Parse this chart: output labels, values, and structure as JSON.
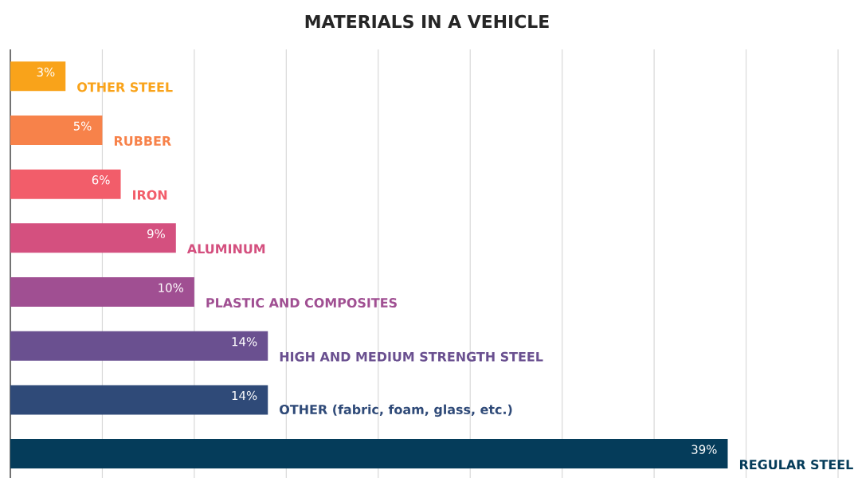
{
  "chart_data": {
    "type": "bar",
    "orientation": "horizontal",
    "title": "MATERIALS IN A VEHICLE",
    "categories": [
      "OTHER STEEL",
      "RUBBER",
      "IRON",
      "ALUMINUM",
      "PLASTIC AND COMPOSITES",
      "HIGH AND MEDIUM STRENGTH STEEL",
      "OTHER (fabric, foam, glass, etc.)",
      "REGULAR STEEL"
    ],
    "values": [
      3,
      5,
      6,
      9,
      10,
      14,
      14,
      39
    ],
    "value_labels": [
      "3%",
      "5%",
      "6%",
      "9%",
      "10%",
      "14%",
      "14%",
      "39%"
    ],
    "colors": [
      "#f9a31a",
      "#f7824a",
      "#f25d6a",
      "#d4507f",
      "#a04f92",
      "#6a5090",
      "#2f4a78",
      "#053c5a"
    ],
    "xlim": [
      0,
      45
    ],
    "xticks": [
      {
        "value": 0,
        "label": null
      },
      {
        "value": 5,
        "label": null
      },
      {
        "value": 10,
        "label": null
      },
      {
        "value": 15,
        "label": null
      },
      {
        "value": 20,
        "label": null
      },
      {
        "value": 25,
        "label": null
      },
      {
        "value": 30,
        "label": null
      },
      {
        "value": 35,
        "label": null
      },
      {
        "value": 40,
        "label": null
      },
      {
        "value": 45,
        "label": null
      }
    ],
    "grid": "x"
  }
}
